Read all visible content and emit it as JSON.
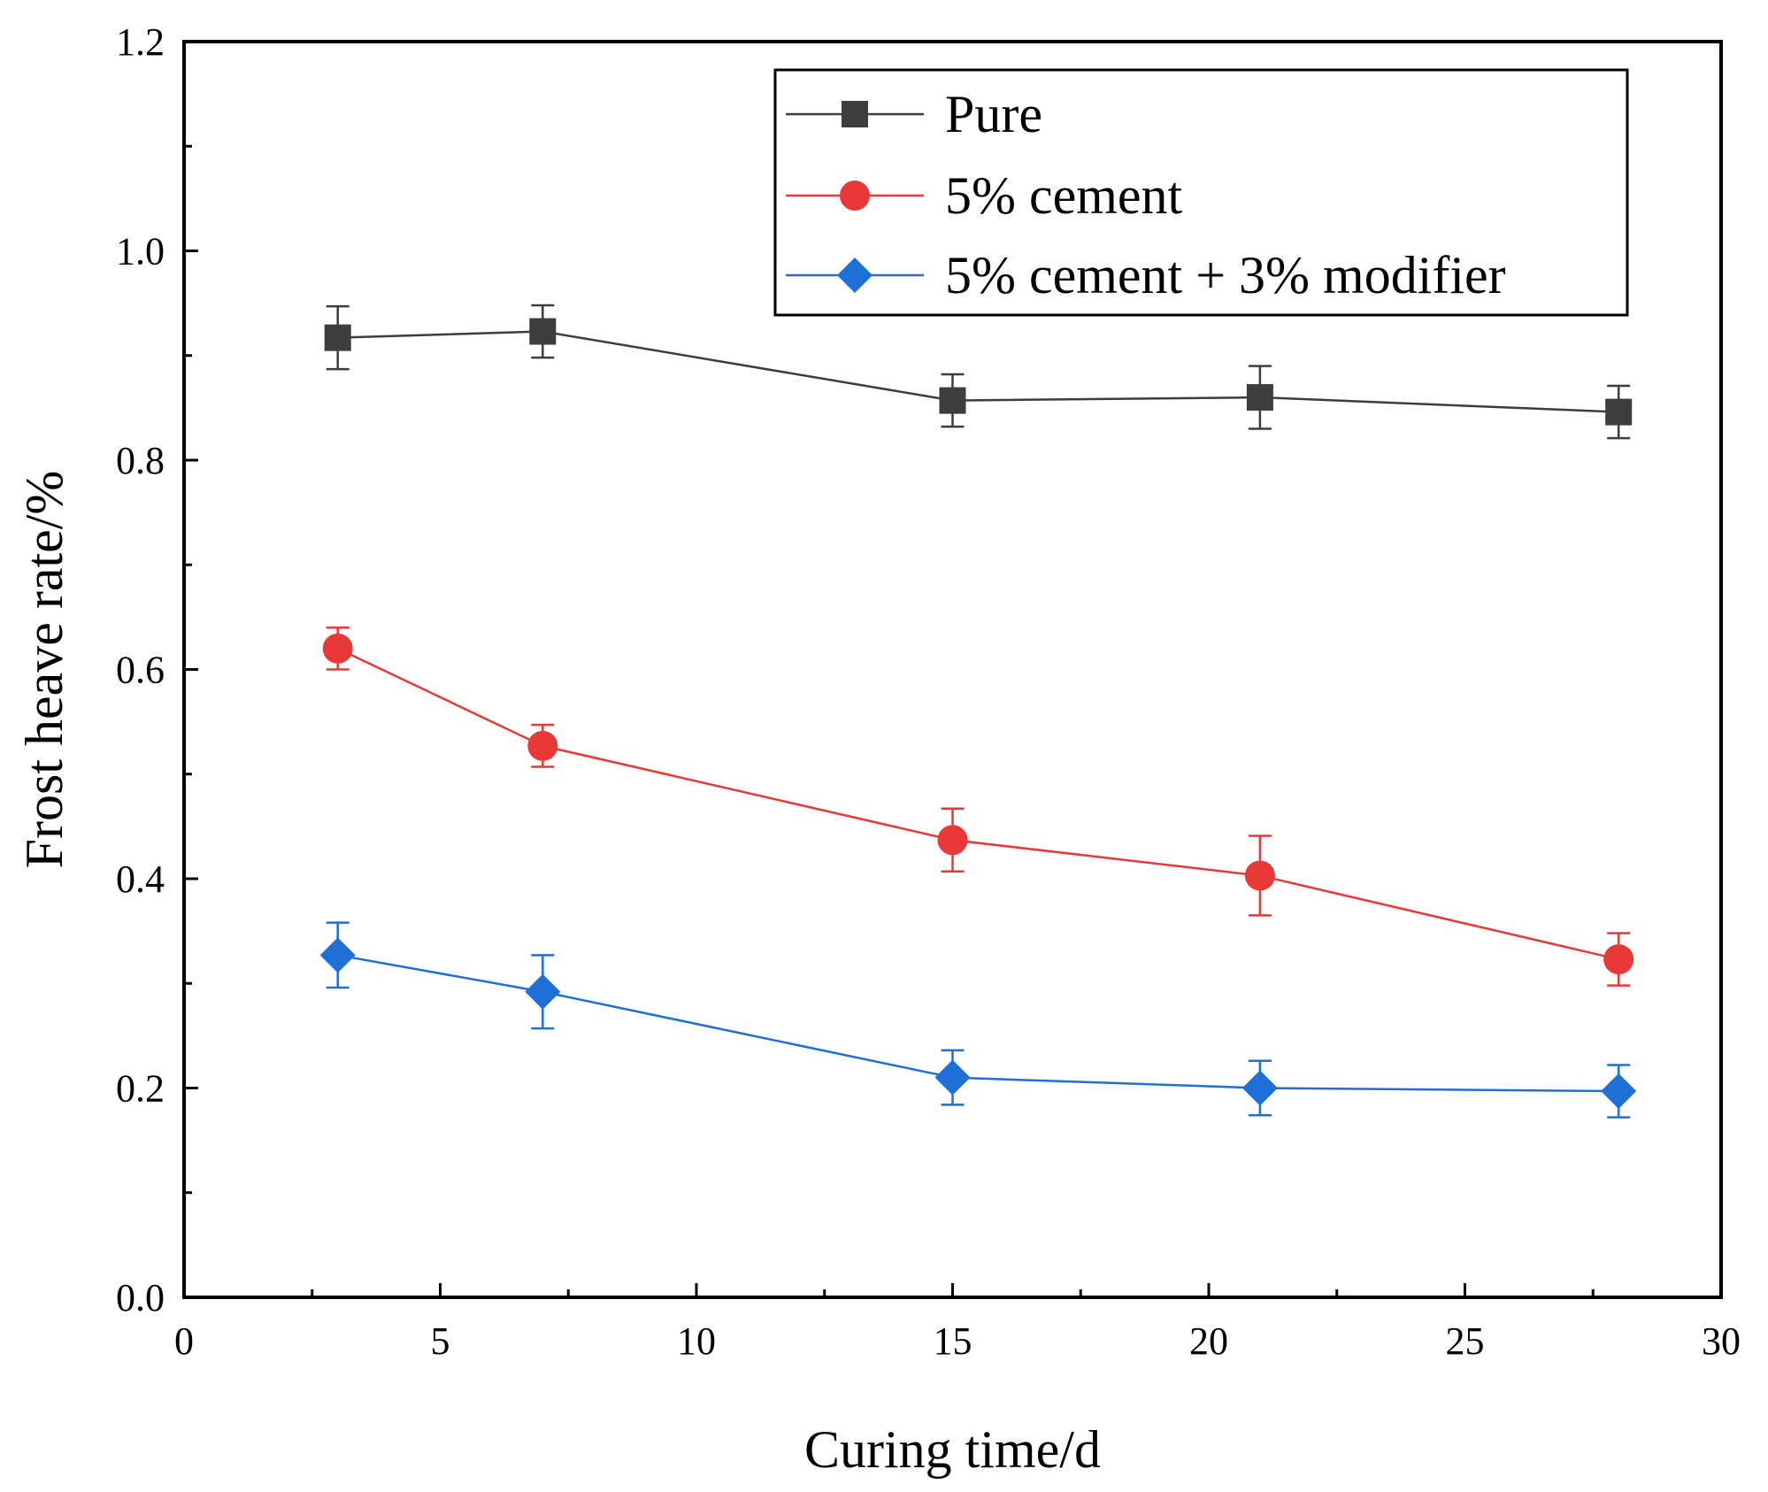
{
  "chart_data": {
    "type": "line",
    "title": "",
    "xlabel": "Curing time/d",
    "ylabel": "Frost heave rate/%",
    "xlim": [
      0,
      30
    ],
    "ylim": [
      0.0,
      1.2
    ],
    "xticks": [
      0,
      5,
      10,
      15,
      20,
      25,
      30
    ],
    "xtick_labels": [
      "0",
      "5",
      "10",
      "15",
      "20",
      "25",
      "30"
    ],
    "yticks": [
      0.0,
      0.2,
      0.4,
      0.6,
      0.8,
      1.0,
      1.2
    ],
    "ytick_labels": [
      "0.0",
      "0.2",
      "0.4",
      "0.6",
      "0.8",
      "1.0",
      "1.2"
    ],
    "grid": false,
    "legend_position": "top-right",
    "x": [
      3,
      7,
      15,
      21,
      28
    ],
    "series": [
      {
        "name": "Pure",
        "color": "#3d3d3d",
        "marker": "square",
        "values": [
          0.917,
          0.923,
          0.857,
          0.86,
          0.846
        ],
        "errors": [
          0.03,
          0.025,
          0.025,
          0.03,
          0.025
        ]
      },
      {
        "name": "5% cement",
        "color": "#e83838",
        "marker": "circle",
        "values": [
          0.62,
          0.527,
          0.437,
          0.403,
          0.323
        ],
        "errors": [
          0.02,
          0.02,
          0.03,
          0.038,
          0.025
        ]
      },
      {
        "name": "5% cement + 3% modifier",
        "color": "#1f6fd8",
        "marker": "diamond",
        "values": [
          0.327,
          0.292,
          0.21,
          0.2,
          0.197
        ],
        "errors": [
          0.031,
          0.035,
          0.026,
          0.026,
          0.025
        ]
      }
    ]
  }
}
